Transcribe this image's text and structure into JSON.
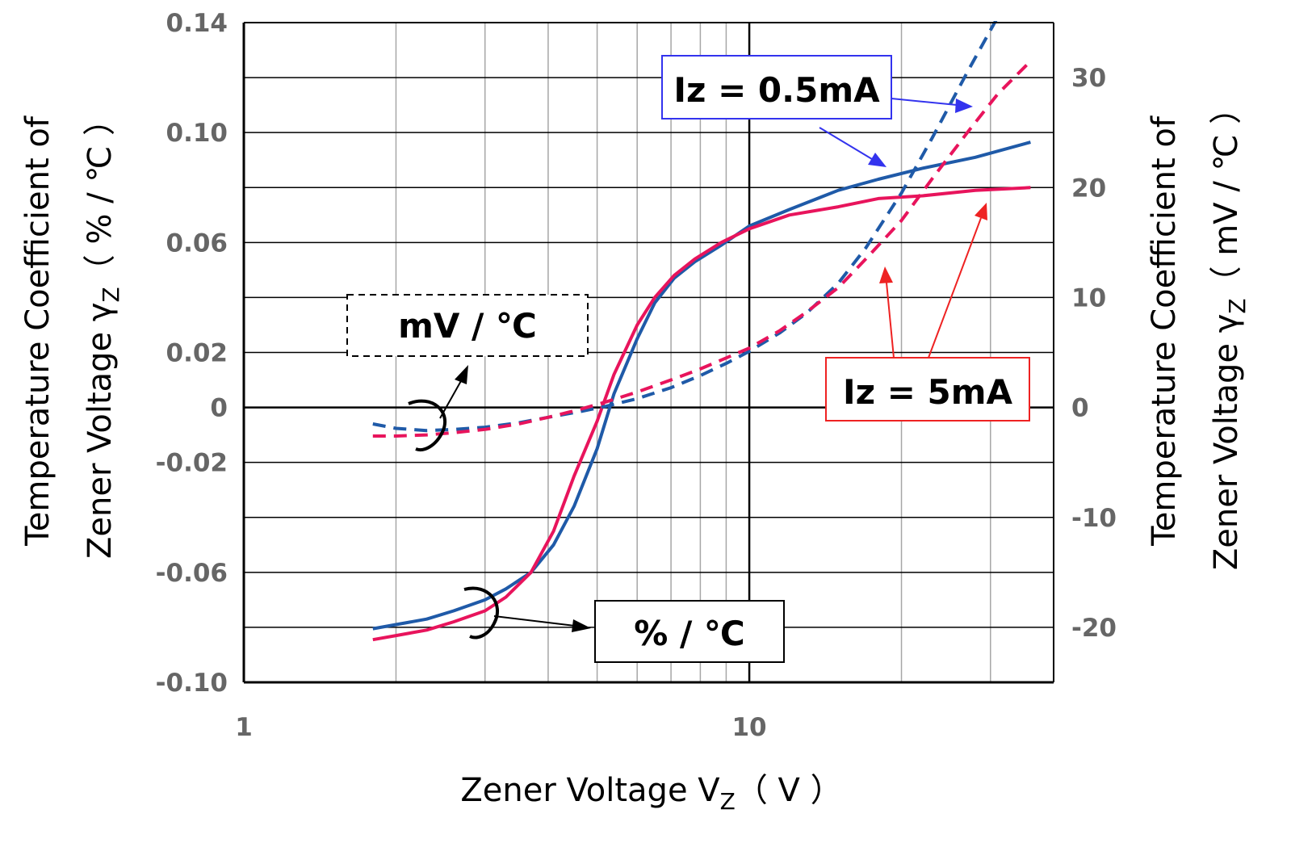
{
  "chart_data": {
    "type": "line",
    "xscale": "log",
    "xlim": [
      1,
      40
    ],
    "x_ticks": [
      "1",
      "10"
    ],
    "xlabel": {
      "main": "Zener Voltage V",
      "sub": "Z",
      "unit": "（ V ）"
    },
    "ylim_left": [
      -0.1,
      0.14
    ],
    "y_left_ticks": [
      "0.14",
      "0.10",
      "0.06",
      "0.02",
      "0",
      "-0.02",
      "-0.06",
      "-0.10"
    ],
    "ylabel_left": {
      "line1": "Temperature Coefficient of",
      "line2_main": "Zener Voltage γ",
      "line2_sub": "Z",
      "line2_unit": "（ % / ℃ ）"
    },
    "ylim_right": [
      -25,
      35
    ],
    "y_right_ticks": [
      "30",
      "20",
      "10",
      "0",
      "-10",
      "-20"
    ],
    "ylabel_right": {
      "line1": "Temperature Coefficient of",
      "line2_main": "Zener Voltage γ",
      "line2_sub": "Z",
      "line2_unit": "（ mV / ℃ ）"
    },
    "grid": true,
    "annotations": {
      "iz_05": "Iz = 0.5mA",
      "iz_5": "Iz = 5mA",
      "unit_mv": "mV / ℃",
      "unit_pct": "% / ℃"
    },
    "series": [
      {
        "name": "Iz = 0.5mA",
        "unit": "% / ℃",
        "axis": "left",
        "color": "#1f5aa8",
        "style": "solid",
        "x": [
          1.8,
          2.0,
          2.3,
          2.6,
          3.0,
          3.3,
          3.7,
          4.1,
          4.5,
          5.0,
          5.4,
          6.0,
          6.5,
          7.1,
          7.8,
          8.8,
          10.0,
          12.0,
          15.0,
          18.0,
          22.0,
          28.0,
          36.0
        ],
        "y": [
          -0.0805,
          -0.079,
          -0.077,
          -0.074,
          -0.07,
          -0.066,
          -0.06,
          -0.05,
          -0.036,
          -0.015,
          0.005,
          0.025,
          0.038,
          0.047,
          0.053,
          0.059,
          0.066,
          0.072,
          0.079,
          0.083,
          0.087,
          0.091,
          0.0965
        ]
      },
      {
        "name": "Iz = 5mA",
        "unit": "% / ℃",
        "axis": "left",
        "color": "#e8145c",
        "style": "solid",
        "x": [
          1.8,
          2.0,
          2.3,
          2.6,
          3.0,
          3.3,
          3.7,
          4.1,
          4.5,
          5.0,
          5.4,
          6.0,
          6.5,
          7.1,
          7.8,
          8.8,
          10.0,
          12.0,
          15.0,
          18.0,
          22.0,
          28.0,
          36.0
        ],
        "y": [
          -0.0845,
          -0.083,
          -0.081,
          -0.078,
          -0.074,
          -0.069,
          -0.06,
          -0.045,
          -0.025,
          -0.005,
          0.012,
          0.03,
          0.04,
          0.048,
          0.054,
          0.06,
          0.065,
          0.07,
          0.073,
          0.076,
          0.077,
          0.079,
          0.08
        ]
      },
      {
        "name": "Iz = 0.5mA",
        "unit": "mV / ℃",
        "axis": "right",
        "color": "#1f5aa8",
        "style": "dashed",
        "x": [
          1.8,
          2.0,
          2.3,
          2.6,
          3.0,
          3.5,
          4.0,
          4.6,
          5.2,
          6.0,
          7.0,
          8.0,
          9.0,
          10.0,
          11.5,
          13.0,
          15.0,
          17.0,
          20.0,
          23.0,
          27.0,
          31.0,
          36.0
        ],
        "y": [
          -1.5,
          -1.9,
          -2.1,
          -2.0,
          -1.8,
          -1.4,
          -0.9,
          -0.4,
          0.1,
          0.8,
          1.8,
          2.9,
          4.0,
          5.1,
          6.8,
          8.6,
          11.3,
          14.5,
          19.5,
          24.5,
          30.5,
          35.5,
          41.0
        ]
      },
      {
        "name": "Iz = 5mA",
        "unit": "mV / ℃",
        "axis": "right",
        "color": "#e8145c",
        "style": "dashed",
        "x": [
          1.8,
          2.0,
          2.3,
          2.6,
          3.0,
          3.5,
          4.0,
          4.6,
          5.2,
          6.0,
          7.0,
          8.0,
          9.0,
          10.0,
          11.5,
          13.0,
          15.0,
          17.0,
          20.0,
          23.0,
          27.0,
          31.0,
          36.0
        ],
        "y": [
          -2.6,
          -2.6,
          -2.5,
          -2.3,
          -2.0,
          -1.5,
          -0.9,
          -0.2,
          0.5,
          1.4,
          2.5,
          3.5,
          4.5,
          5.4,
          7.0,
          8.7,
          10.9,
          13.5,
          17.0,
          20.8,
          25.0,
          28.5,
          31.5
        ]
      }
    ]
  }
}
